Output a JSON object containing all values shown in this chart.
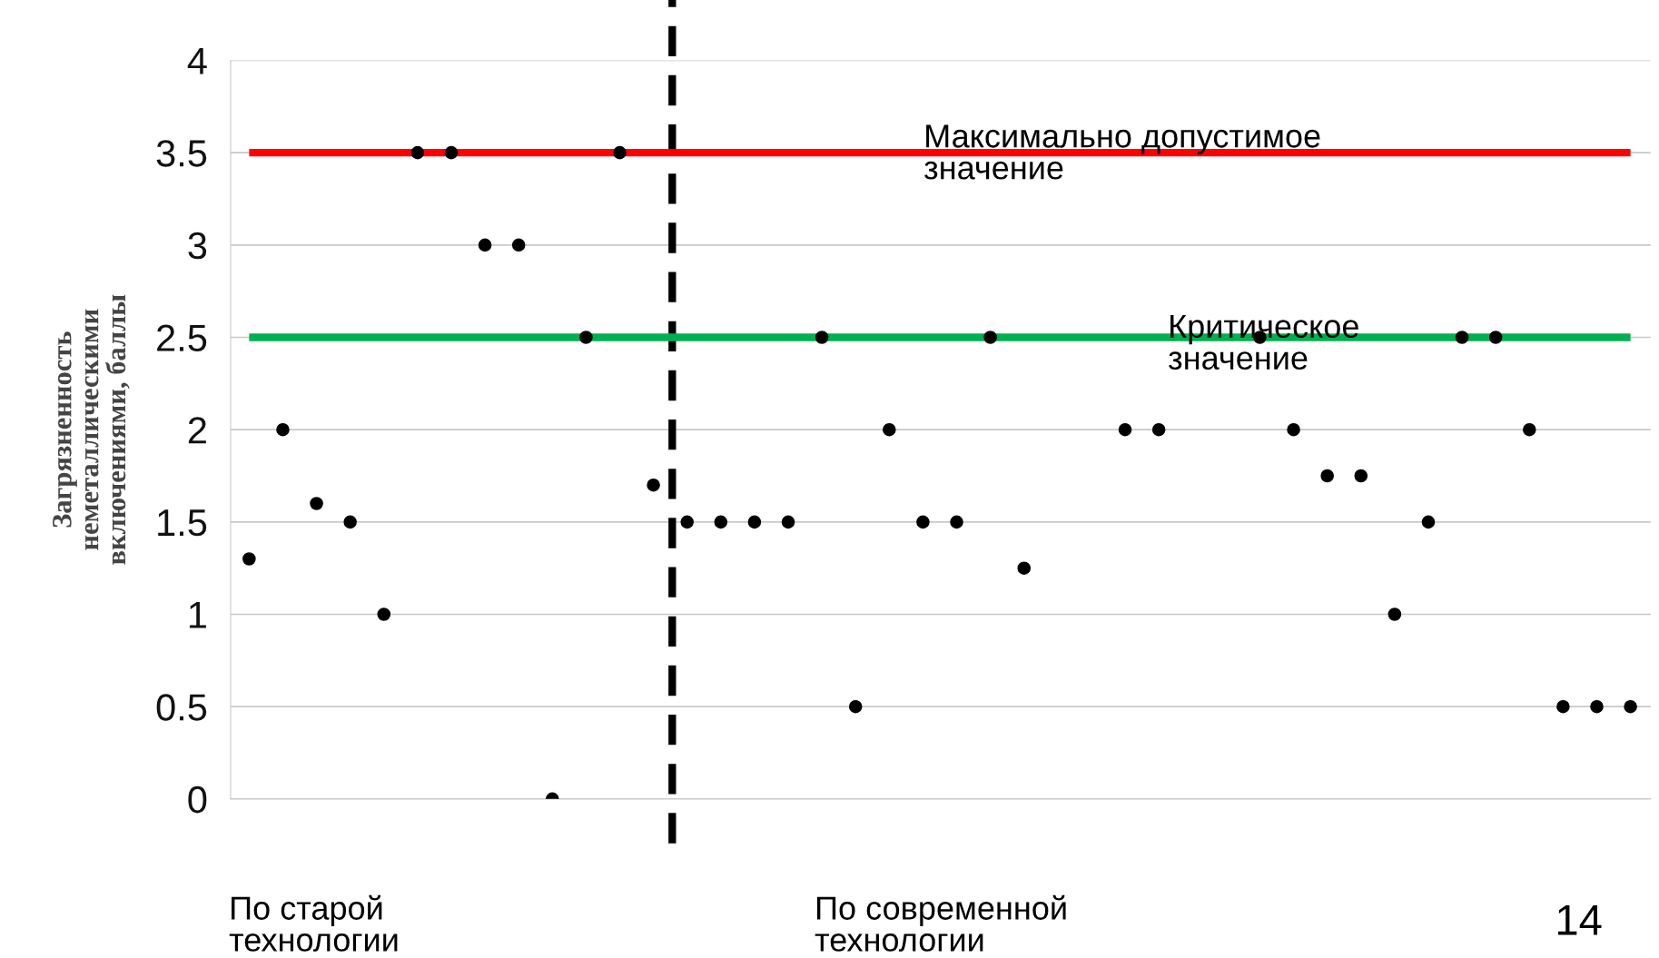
{
  "chart_data": {
    "type": "scatter",
    "ylabel": "Загрязненность\nнеметаллическими\nвключениями, баллы",
    "categories": [
      null,
      null,
      null,
      null,
      null,
      null,
      null,
      null,
      null,
      null,
      null,
      null,
      null,
      null,
      null,
      null,
      null,
      null,
      null,
      null,
      null,
      null,
      null,
      null,
      null,
      null,
      null,
      null,
      null,
      null,
      null,
      null,
      null,
      null,
      null,
      null,
      null,
      null,
      null,
      null,
      null,
      null
    ],
    "series": [
      {
        "color": "#000000",
        "values": [
          1.3,
          2,
          1.6,
          1.5,
          1,
          3.5,
          3.5,
          3,
          3,
          0,
          2.5,
          3.5,
          1.7,
          1.5,
          1.5,
          1.5,
          1.5,
          2.5,
          0.5,
          2,
          1.5,
          1.5,
          2.5,
          1.25,
          null,
          null,
          2,
          2,
          null,
          null,
          2.5,
          2,
          1.75,
          1.75,
          1,
          1.5,
          2.5,
          2.5,
          2,
          0.5,
          0.5,
          0.5
        ]
      }
    ],
    "ylim": [
      0,
      4
    ],
    "yticks": [
      0,
      0.5,
      1,
      1.5,
      2,
      2.5,
      3,
      3.5,
      4
    ],
    "tick_labels": "y",
    "grid": "y",
    "marker": "circle",
    "legend": false,
    "ref_lines": [
      {
        "axis": "y",
        "value": 3.5,
        "label": "Максимально допустимое\nзначение",
        "color": "#ff0000"
      },
      {
        "axis": "y",
        "value": 2.5,
        "label": "Критическое\nзначение",
        "color": "#00b050"
      }
    ],
    "annotations": [
      "По старой\nтехнологии",
      "По современной\nтехнологии",
      "14"
    ]
  }
}
